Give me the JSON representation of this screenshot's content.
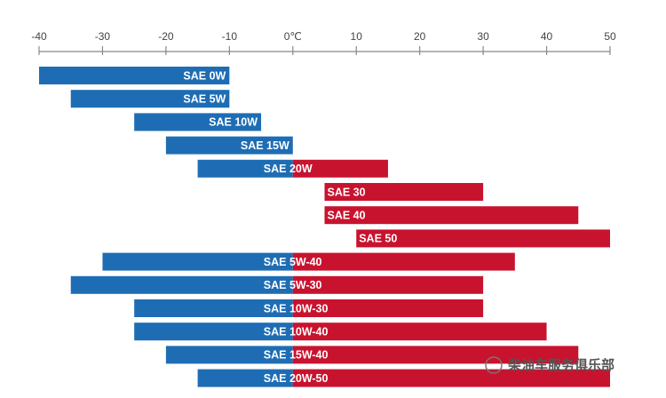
{
  "chart_data": {
    "type": "range-bar",
    "categories": [
      "SAE 0W",
      "SAE 5W",
      "SAE 10W",
      "SAE 15W",
      "SAE 20W",
      "SAE 30",
      "SAE 40",
      "SAE 50",
      "SAE 5W-40",
      "SAE 5W-30",
      "SAE 10W-30",
      "SAE 10W-40",
      "SAE 15W-40",
      "SAE 20W-50"
    ],
    "low": [
      -40,
      -35,
      -25,
      -20,
      -15,
      5,
      5,
      10,
      -30,
      -35,
      -25,
      -25,
      -20,
      -15
    ],
    "high": [
      -10,
      -10,
      -5,
      0,
      15,
      30,
      45,
      50,
      35,
      30,
      30,
      40,
      45,
      50
    ],
    "below_zero_color": "#1e6db4",
    "above_zero_color": "#c8132f",
    "xlim": [
      -40,
      50
    ],
    "xticks": [
      -40,
      -30,
      -20,
      -10,
      {
        "value": 0,
        "label": "0℃"
      },
      10,
      20,
      30,
      40,
      50
    ],
    "watermark": "柴油车服务俱乐部"
  }
}
